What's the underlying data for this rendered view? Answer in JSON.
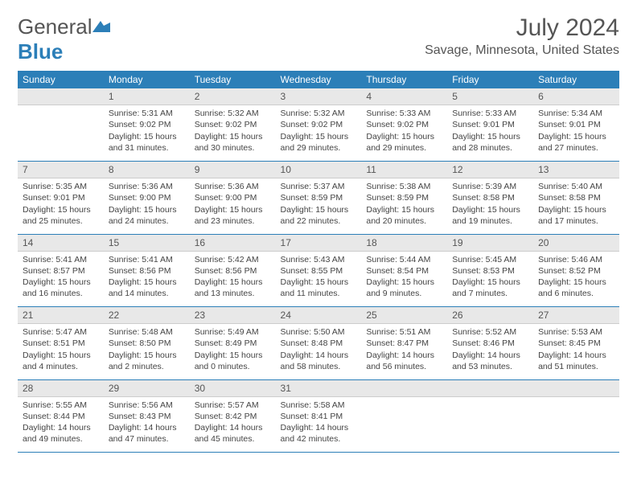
{
  "brand": {
    "part1": "General",
    "part2": "Blue"
  },
  "title": "July 2024",
  "location": "Savage, Minnesota, United States",
  "colors": {
    "header_bg": "#2c7fb8",
    "daynum_bg": "#e8e8e8",
    "text": "#444444"
  },
  "day_headers": [
    "Sunday",
    "Monday",
    "Tuesday",
    "Wednesday",
    "Thursday",
    "Friday",
    "Saturday"
  ],
  "weeks": [
    [
      {
        "n": "",
        "sr": "",
        "ss": "",
        "dl": ""
      },
      {
        "n": "1",
        "sr": "Sunrise: 5:31 AM",
        "ss": "Sunset: 9:02 PM",
        "dl": "Daylight: 15 hours and 31 minutes."
      },
      {
        "n": "2",
        "sr": "Sunrise: 5:32 AM",
        "ss": "Sunset: 9:02 PM",
        "dl": "Daylight: 15 hours and 30 minutes."
      },
      {
        "n": "3",
        "sr": "Sunrise: 5:32 AM",
        "ss": "Sunset: 9:02 PM",
        "dl": "Daylight: 15 hours and 29 minutes."
      },
      {
        "n": "4",
        "sr": "Sunrise: 5:33 AM",
        "ss": "Sunset: 9:02 PM",
        "dl": "Daylight: 15 hours and 29 minutes."
      },
      {
        "n": "5",
        "sr": "Sunrise: 5:33 AM",
        "ss": "Sunset: 9:01 PM",
        "dl": "Daylight: 15 hours and 28 minutes."
      },
      {
        "n": "6",
        "sr": "Sunrise: 5:34 AM",
        "ss": "Sunset: 9:01 PM",
        "dl": "Daylight: 15 hours and 27 minutes."
      }
    ],
    [
      {
        "n": "7",
        "sr": "Sunrise: 5:35 AM",
        "ss": "Sunset: 9:01 PM",
        "dl": "Daylight: 15 hours and 25 minutes."
      },
      {
        "n": "8",
        "sr": "Sunrise: 5:36 AM",
        "ss": "Sunset: 9:00 PM",
        "dl": "Daylight: 15 hours and 24 minutes."
      },
      {
        "n": "9",
        "sr": "Sunrise: 5:36 AM",
        "ss": "Sunset: 9:00 PM",
        "dl": "Daylight: 15 hours and 23 minutes."
      },
      {
        "n": "10",
        "sr": "Sunrise: 5:37 AM",
        "ss": "Sunset: 8:59 PM",
        "dl": "Daylight: 15 hours and 22 minutes."
      },
      {
        "n": "11",
        "sr": "Sunrise: 5:38 AM",
        "ss": "Sunset: 8:59 PM",
        "dl": "Daylight: 15 hours and 20 minutes."
      },
      {
        "n": "12",
        "sr": "Sunrise: 5:39 AM",
        "ss": "Sunset: 8:58 PM",
        "dl": "Daylight: 15 hours and 19 minutes."
      },
      {
        "n": "13",
        "sr": "Sunrise: 5:40 AM",
        "ss": "Sunset: 8:58 PM",
        "dl": "Daylight: 15 hours and 17 minutes."
      }
    ],
    [
      {
        "n": "14",
        "sr": "Sunrise: 5:41 AM",
        "ss": "Sunset: 8:57 PM",
        "dl": "Daylight: 15 hours and 16 minutes."
      },
      {
        "n": "15",
        "sr": "Sunrise: 5:41 AM",
        "ss": "Sunset: 8:56 PM",
        "dl": "Daylight: 15 hours and 14 minutes."
      },
      {
        "n": "16",
        "sr": "Sunrise: 5:42 AM",
        "ss": "Sunset: 8:56 PM",
        "dl": "Daylight: 15 hours and 13 minutes."
      },
      {
        "n": "17",
        "sr": "Sunrise: 5:43 AM",
        "ss": "Sunset: 8:55 PM",
        "dl": "Daylight: 15 hours and 11 minutes."
      },
      {
        "n": "18",
        "sr": "Sunrise: 5:44 AM",
        "ss": "Sunset: 8:54 PM",
        "dl": "Daylight: 15 hours and 9 minutes."
      },
      {
        "n": "19",
        "sr": "Sunrise: 5:45 AM",
        "ss": "Sunset: 8:53 PM",
        "dl": "Daylight: 15 hours and 7 minutes."
      },
      {
        "n": "20",
        "sr": "Sunrise: 5:46 AM",
        "ss": "Sunset: 8:52 PM",
        "dl": "Daylight: 15 hours and 6 minutes."
      }
    ],
    [
      {
        "n": "21",
        "sr": "Sunrise: 5:47 AM",
        "ss": "Sunset: 8:51 PM",
        "dl": "Daylight: 15 hours and 4 minutes."
      },
      {
        "n": "22",
        "sr": "Sunrise: 5:48 AM",
        "ss": "Sunset: 8:50 PM",
        "dl": "Daylight: 15 hours and 2 minutes."
      },
      {
        "n": "23",
        "sr": "Sunrise: 5:49 AM",
        "ss": "Sunset: 8:49 PM",
        "dl": "Daylight: 15 hours and 0 minutes."
      },
      {
        "n": "24",
        "sr": "Sunrise: 5:50 AM",
        "ss": "Sunset: 8:48 PM",
        "dl": "Daylight: 14 hours and 58 minutes."
      },
      {
        "n": "25",
        "sr": "Sunrise: 5:51 AM",
        "ss": "Sunset: 8:47 PM",
        "dl": "Daylight: 14 hours and 56 minutes."
      },
      {
        "n": "26",
        "sr": "Sunrise: 5:52 AM",
        "ss": "Sunset: 8:46 PM",
        "dl": "Daylight: 14 hours and 53 minutes."
      },
      {
        "n": "27",
        "sr": "Sunrise: 5:53 AM",
        "ss": "Sunset: 8:45 PM",
        "dl": "Daylight: 14 hours and 51 minutes."
      }
    ],
    [
      {
        "n": "28",
        "sr": "Sunrise: 5:55 AM",
        "ss": "Sunset: 8:44 PM",
        "dl": "Daylight: 14 hours and 49 minutes."
      },
      {
        "n": "29",
        "sr": "Sunrise: 5:56 AM",
        "ss": "Sunset: 8:43 PM",
        "dl": "Daylight: 14 hours and 47 minutes."
      },
      {
        "n": "30",
        "sr": "Sunrise: 5:57 AM",
        "ss": "Sunset: 8:42 PM",
        "dl": "Daylight: 14 hours and 45 minutes."
      },
      {
        "n": "31",
        "sr": "Sunrise: 5:58 AM",
        "ss": "Sunset: 8:41 PM",
        "dl": "Daylight: 14 hours and 42 minutes."
      },
      {
        "n": "",
        "sr": "",
        "ss": "",
        "dl": ""
      },
      {
        "n": "",
        "sr": "",
        "ss": "",
        "dl": ""
      },
      {
        "n": "",
        "sr": "",
        "ss": "",
        "dl": ""
      }
    ]
  ]
}
